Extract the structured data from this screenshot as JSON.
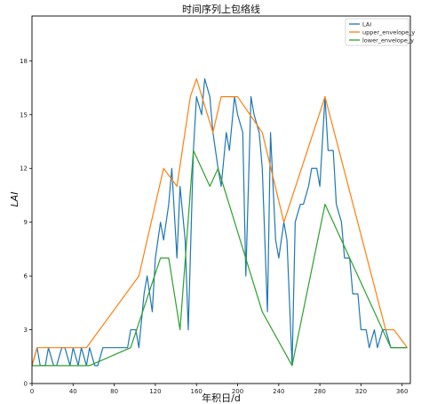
{
  "chart_data": {
    "type": "line",
    "title": "时间序列上包络线",
    "xlabel": "年积日/d",
    "ylabel": "LAI",
    "xlim": [
      0,
      368
    ],
    "ylim": [
      0,
      20.5
    ],
    "xticks": [
      0,
      40,
      80,
      120,
      160,
      200,
      240,
      280,
      320,
      360
    ],
    "yticks": [
      0,
      3,
      6,
      9,
      12,
      15,
      18
    ],
    "grid": false,
    "legend_position": "top-right",
    "series": [
      {
        "name": "LAI",
        "color": "#1f77b4",
        "x": [
          0,
          5,
          8,
          13,
          16,
          21,
          24,
          29,
          32,
          37,
          40,
          45,
          48,
          53,
          56,
          61,
          64,
          69,
          72,
          77,
          80,
          85,
          88,
          93,
          96,
          101,
          104,
          109,
          112,
          117,
          120,
          125,
          128,
          133,
          136,
          141,
          144,
          149,
          152,
          157,
          160,
          165,
          168,
          173,
          176,
          181,
          184,
          189,
          192,
          197,
          200,
          205,
          208,
          213,
          216,
          221,
          224,
          229,
          232,
          237,
          240,
          245,
          248,
          253,
          256,
          261,
          264,
          269,
          272,
          277,
          280,
          285,
          288,
          293,
          296,
          301,
          304,
          309,
          312,
          317,
          320,
          325,
          328,
          333,
          336,
          341,
          344,
          349,
          352,
          357,
          360,
          365
        ],
        "values": [
          1,
          2,
          1,
          1,
          2,
          1,
          1,
          2,
          2,
          1,
          2,
          1,
          2,
          1,
          2,
          1,
          1,
          2,
          2,
          2,
          2,
          2,
          2,
          2,
          3,
          3,
          2,
          5,
          6,
          4,
          7,
          9,
          8,
          10,
          12,
          7,
          11,
          8,
          3,
          13,
          16,
          15,
          17,
          16,
          14,
          12,
          11,
          14,
          13,
          16,
          15,
          14,
          6,
          16,
          15,
          14,
          12,
          4,
          14,
          8,
          7,
          9,
          8,
          1,
          9,
          10,
          10,
          11,
          12,
          12,
          11,
          16,
          13,
          13,
          10,
          9,
          7,
          7,
          5,
          5,
          3,
          3,
          2,
          3,
          2,
          3,
          3,
          2,
          2,
          2,
          2,
          2
        ]
      },
      {
        "name": "upper_envelope_y",
        "color": "#ff7f0e",
        "x": [
          0,
          5,
          53,
          104,
          128,
          141,
          154,
          160,
          176,
          184,
          200,
          224,
          245,
          285,
          344,
          352,
          365
        ],
        "values": [
          1,
          2,
          2,
          6,
          12,
          11,
          16,
          17,
          14,
          16,
          16,
          14,
          9,
          16,
          3,
          3,
          2
        ]
      },
      {
        "name": "lower_envelope_y",
        "color": "#2ca02c",
        "x": [
          0,
          56,
          96,
          125,
          133,
          144,
          157,
          173,
          181,
          224,
          253,
          285,
          349,
          365
        ],
        "values": [
          1,
          1,
          2,
          7,
          7,
          3,
          13,
          11,
          12,
          4,
          1,
          10,
          2,
          2
        ]
      }
    ]
  }
}
